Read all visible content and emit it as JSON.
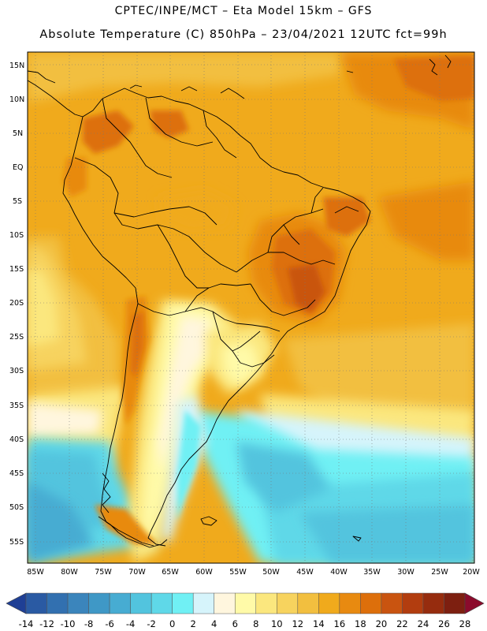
{
  "header": {
    "title_line1": "CPTEC/INPE/MCT –  Eta Model 15km – GFS",
    "title_line2": "Absolute Temperature (C) 850hPa – 23/04/2021 12UTC fct=99h"
  },
  "map": {
    "lat_labels": [
      "15N",
      "10N",
      "5N",
      "EQ",
      "5S",
      "10S",
      "15S",
      "20S",
      "25S",
      "30S",
      "35S",
      "40S",
      "45S",
      "50S",
      "55S"
    ],
    "lon_labels": [
      "85W",
      "80W",
      "75W",
      "70W",
      "65W",
      "60W",
      "55W",
      "50W",
      "45W",
      "40W",
      "35W",
      "30W",
      "25W",
      "20W"
    ],
    "extent": {
      "lon_min": -85,
      "lon_max": -20,
      "lat_min": -58,
      "lat_max": 17
    }
  },
  "colorbar": {
    "labels": [
      "-14",
      "-12",
      "-10",
      "-8",
      "-6",
      "-4",
      "-2",
      "0",
      "2",
      "4",
      "6",
      "8",
      "10",
      "12",
      "14",
      "16",
      "18",
      "20",
      "22",
      "24",
      "26",
      "28"
    ],
    "colors": [
      "#1f3f95",
      "#2a5aa3",
      "#3270b0",
      "#3b85bc",
      "#3f98c6",
      "#47acd2",
      "#52c4de",
      "#5fd8e8",
      "#70f0f4",
      "#d6f4fb",
      "#fff6de",
      "#fffaa8",
      "#fbe77e",
      "#f7d35e",
      "#f2bf3f",
      "#f0aa1c",
      "#e88a10",
      "#dd6f0b",
      "#c95410",
      "#b23d0f",
      "#962c0e",
      "#7d1f10",
      "#8b0b2c"
    ]
  },
  "colors": {
    "warm_orange": "#f0aa1c",
    "hot_dark_orange": "#dd6f0b",
    "cool_cyan": "#52c4de",
    "coast_line": "#000000"
  }
}
